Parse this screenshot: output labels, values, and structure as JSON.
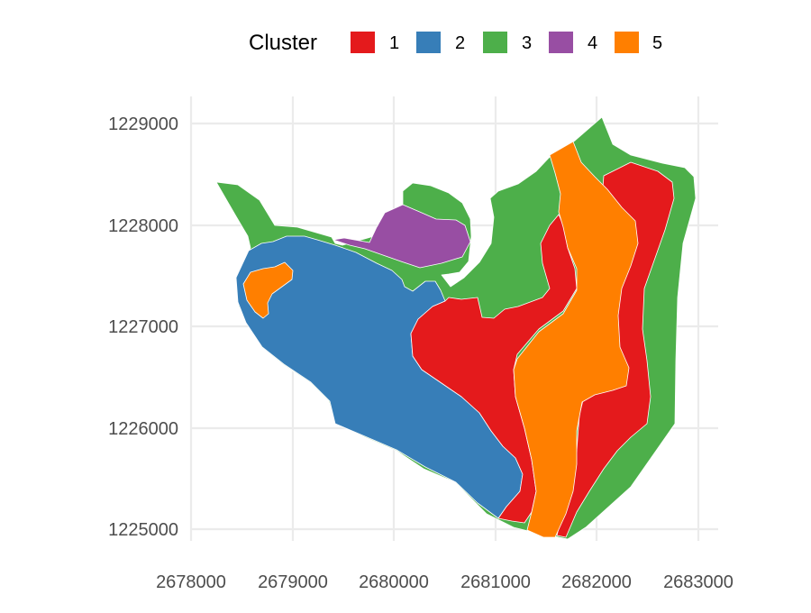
{
  "chart_data": {
    "type": "choropleth-map",
    "title": "",
    "xlabel": "",
    "ylabel": "",
    "xlim": [
      2678000,
      2683000
    ],
    "ylim": [
      1225000,
      1229000
    ],
    "x_ticks": [
      "2678000",
      "2679000",
      "2680000",
      "2681000",
      "2682000",
      "2683000"
    ],
    "y_ticks": [
      "1225000",
      "1226000",
      "1227000",
      "1228000",
      "1229000"
    ],
    "grid": true,
    "legend": {
      "title": "Cluster",
      "position": "top",
      "items": [
        {
          "label": "1",
          "color": "#e41a1c"
        },
        {
          "label": "2",
          "color": "#377eb8"
        },
        {
          "label": "3",
          "color": "#4daf4a"
        },
        {
          "label": "4",
          "color": "#984ea3"
        },
        {
          "label": "5",
          "color": "#ff7f00"
        }
      ]
    }
  }
}
